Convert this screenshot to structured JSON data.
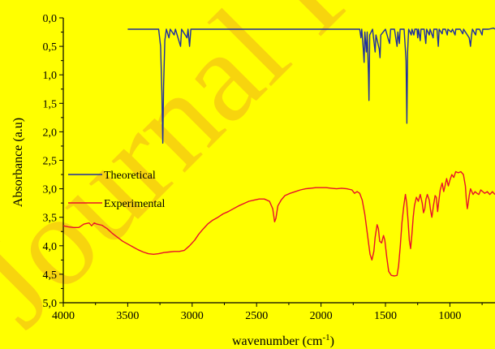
{
  "chart_data": {
    "type": "line",
    "watermark": "Journal Pre-proof",
    "xlabel": "wavenumber (cm",
    "xlabel_sup": "-1",
    "xlabel_suffix": ")",
    "ylabel": "Absorbance (a.u)",
    "xlim": [
      4000,
      650
    ],
    "ylim": [
      0.0,
      5.0
    ],
    "y_inverted": true,
    "x_ticks": [
      4000,
      3500,
      3000,
      2500,
      2000,
      1500,
      1000
    ],
    "x_tick_labels": [
      "4000",
      "3500",
      "3000",
      "2500",
      "2000",
      "1500",
      "1000"
    ],
    "y_ticks": [
      0.0,
      0.5,
      1.0,
      1.5,
      2.0,
      2.5,
      3.0,
      3.5,
      4.0,
      4.5,
      5.0
    ],
    "y_tick_labels": [
      "0,0",
      "0,5",
      "1,0",
      "1,5",
      "2,0",
      "2,5",
      "3,0",
      "3,5",
      "4,0",
      "4,5",
      "5,0"
    ],
    "grid": false,
    "legend_position": "left",
    "colors": {
      "background": "#ffff00",
      "theoretical": "#1f2f9e",
      "experimental": "#e8102a",
      "watermark": "#f2b21a"
    },
    "series": [
      {
        "name": "Theoretical",
        "color": "#1f2f9e",
        "points": [
          [
            3500,
            0.2
          ],
          [
            3260,
            0.2
          ],
          [
            3245,
            0.5
          ],
          [
            3235,
            1.3
          ],
          [
            3228,
            2.2
          ],
          [
            3222,
            1.2
          ],
          [
            3212,
            0.4
          ],
          [
            3200,
            0.2
          ],
          [
            3180,
            0.35
          ],
          [
            3170,
            0.2
          ],
          [
            3140,
            0.3
          ],
          [
            3130,
            0.2
          ],
          [
            3090,
            0.5
          ],
          [
            3082,
            0.2
          ],
          [
            3040,
            0.35
          ],
          [
            3032,
            0.2
          ],
          [
            3020,
            0.5
          ],
          [
            3010,
            0.2
          ],
          [
            1700,
            0.2
          ],
          [
            1690,
            0.35
          ],
          [
            1684,
            0.2
          ],
          [
            1672,
            0.55
          ],
          [
            1666,
            0.78
          ],
          [
            1660,
            0.25
          ],
          [
            1648,
            0.6
          ],
          [
            1642,
            0.25
          ],
          [
            1632,
            1.0
          ],
          [
            1628,
            1.45
          ],
          [
            1622,
            0.3
          ],
          [
            1600,
            0.2
          ],
          [
            1580,
            0.6
          ],
          [
            1574,
            0.3
          ],
          [
            1548,
            0.55
          ],
          [
            1542,
            0.7
          ],
          [
            1536,
            0.3
          ],
          [
            1500,
            0.2
          ],
          [
            1475,
            0.4
          ],
          [
            1468,
            0.45
          ],
          [
            1460,
            0.2
          ],
          [
            1430,
            0.2
          ],
          [
            1410,
            0.5
          ],
          [
            1404,
            0.25
          ],
          [
            1392,
            0.45
          ],
          [
            1386,
            0.2
          ],
          [
            1355,
            0.2
          ],
          [
            1340,
            0.75
          ],
          [
            1334,
            1.85
          ],
          [
            1328,
            0.6
          ],
          [
            1320,
            0.2
          ],
          [
            1300,
            0.3
          ],
          [
            1294,
            0.2
          ],
          [
            1280,
            0.3
          ],
          [
            1272,
            0.2
          ],
          [
            1255,
            0.2
          ],
          [
            1250,
            0.35
          ],
          [
            1244,
            0.2
          ],
          [
            1230,
            0.4
          ],
          [
            1224,
            0.2
          ],
          [
            1200,
            0.2
          ],
          [
            1187,
            0.45
          ],
          [
            1180,
            0.2
          ],
          [
            1160,
            0.3
          ],
          [
            1154,
            0.2
          ],
          [
            1130,
            0.35
          ],
          [
            1125,
            0.2
          ],
          [
            1100,
            0.2
          ],
          [
            1090,
            0.5
          ],
          [
            1083,
            0.2
          ],
          [
            1060,
            0.28
          ],
          [
            1055,
            0.2
          ],
          [
            1035,
            0.2
          ],
          [
            1020,
            0.3
          ],
          [
            1015,
            0.2
          ],
          [
            990,
            0.25
          ],
          [
            980,
            0.2
          ],
          [
            960,
            0.3
          ],
          [
            954,
            0.2
          ],
          [
            920,
            0.2
          ],
          [
            900,
            0.28
          ],
          [
            894,
            0.2
          ],
          [
            850,
            0.35
          ],
          [
            840,
            0.5
          ],
          [
            832,
            0.3
          ],
          [
            825,
            0.2
          ],
          [
            800,
            0.3
          ],
          [
            795,
            0.2
          ],
          [
            770,
            0.2
          ],
          [
            750,
            0.3
          ],
          [
            745,
            0.2
          ],
          [
            700,
            0.2
          ],
          [
            660,
            0.18
          ],
          [
            650,
            0.2
          ]
        ]
      },
      {
        "name": "Experimental",
        "color": "#e8102a",
        "points": [
          [
            4000,
            3.65
          ],
          [
            3960,
            3.67
          ],
          [
            3920,
            3.68
          ],
          [
            3880,
            3.68
          ],
          [
            3840,
            3.62
          ],
          [
            3800,
            3.6
          ],
          [
            3780,
            3.65
          ],
          [
            3760,
            3.6
          ],
          [
            3740,
            3.62
          ],
          [
            3700,
            3.64
          ],
          [
            3660,
            3.7
          ],
          [
            3620,
            3.78
          ],
          [
            3580,
            3.85
          ],
          [
            3540,
            3.92
          ],
          [
            3500,
            3.97
          ],
          [
            3460,
            4.02
          ],
          [
            3420,
            4.07
          ],
          [
            3380,
            4.11
          ],
          [
            3340,
            4.14
          ],
          [
            3300,
            4.15
          ],
          [
            3260,
            4.14
          ],
          [
            3220,
            4.12
          ],
          [
            3180,
            4.11
          ],
          [
            3140,
            4.1
          ],
          [
            3100,
            4.1
          ],
          [
            3060,
            4.08
          ],
          [
            3020,
            4.0
          ],
          [
            2980,
            3.9
          ],
          [
            2950,
            3.8
          ],
          [
            2920,
            3.72
          ],
          [
            2880,
            3.62
          ],
          [
            2840,
            3.55
          ],
          [
            2800,
            3.5
          ],
          [
            2760,
            3.44
          ],
          [
            2720,
            3.4
          ],
          [
            2680,
            3.35
          ],
          [
            2640,
            3.3
          ],
          [
            2600,
            3.26
          ],
          [
            2560,
            3.22
          ],
          [
            2520,
            3.2
          ],
          [
            2480,
            3.18
          ],
          [
            2440,
            3.18
          ],
          [
            2400,
            3.22
          ],
          [
            2375,
            3.35
          ],
          [
            2360,
            3.58
          ],
          [
            2350,
            3.52
          ],
          [
            2335,
            3.3
          ],
          [
            2310,
            3.2
          ],
          [
            2280,
            3.12
          ],
          [
            2240,
            3.08
          ],
          [
            2200,
            3.05
          ],
          [
            2160,
            3.02
          ],
          [
            2120,
            3.0
          ],
          [
            2080,
            2.99
          ],
          [
            2040,
            2.98
          ],
          [
            2000,
            2.98
          ],
          [
            1960,
            2.98
          ],
          [
            1920,
            2.99
          ],
          [
            1880,
            3.0
          ],
          [
            1840,
            2.99
          ],
          [
            1800,
            3.0
          ],
          [
            1760,
            3.02
          ],
          [
            1740,
            3.08
          ],
          [
            1720,
            3.05
          ],
          [
            1700,
            3.08
          ],
          [
            1680,
            3.2
          ],
          [
            1660,
            3.45
          ],
          [
            1640,
            3.8
          ],
          [
            1620,
            4.15
          ],
          [
            1605,
            4.25
          ],
          [
            1590,
            4.1
          ],
          [
            1580,
            3.85
          ],
          [
            1565,
            3.63
          ],
          [
            1555,
            3.7
          ],
          [
            1545,
            3.92
          ],
          [
            1530,
            3.95
          ],
          [
            1515,
            3.82
          ],
          [
            1505,
            3.9
          ],
          [
            1490,
            4.2
          ],
          [
            1475,
            4.45
          ],
          [
            1455,
            4.52
          ],
          [
            1430,
            4.53
          ],
          [
            1410,
            4.52
          ],
          [
            1398,
            4.35
          ],
          [
            1385,
            4.0
          ],
          [
            1372,
            3.6
          ],
          [
            1358,
            3.3
          ],
          [
            1345,
            3.1
          ],
          [
            1335,
            3.25
          ],
          [
            1325,
            3.55
          ],
          [
            1315,
            3.9
          ],
          [
            1305,
            4.05
          ],
          [
            1295,
            3.8
          ],
          [
            1285,
            3.5
          ],
          [
            1275,
            3.3
          ],
          [
            1260,
            3.15
          ],
          [
            1245,
            3.22
          ],
          [
            1230,
            3.1
          ],
          [
            1215,
            3.25
          ],
          [
            1205,
            3.42
          ],
          [
            1195,
            3.35
          ],
          [
            1185,
            3.18
          ],
          [
            1175,
            3.1
          ],
          [
            1160,
            3.2
          ],
          [
            1150,
            3.38
          ],
          [
            1140,
            3.5
          ],
          [
            1128,
            3.3
          ],
          [
            1115,
            3.12
          ],
          [
            1105,
            3.15
          ],
          [
            1095,
            3.4
          ],
          [
            1085,
            3.2
          ],
          [
            1075,
            3.02
          ],
          [
            1060,
            2.9
          ],
          [
            1048,
            3.05
          ],
          [
            1038,
            2.95
          ],
          [
            1025,
            2.82
          ],
          [
            1012,
            2.95
          ],
          [
            1000,
            2.85
          ],
          [
            985,
            2.75
          ],
          [
            970,
            2.8
          ],
          [
            955,
            2.7
          ],
          [
            935,
            2.72
          ],
          [
            915,
            2.7
          ],
          [
            895,
            2.75
          ],
          [
            880,
            2.95
          ],
          [
            872,
            3.2
          ],
          [
            865,
            3.35
          ],
          [
            858,
            3.25
          ],
          [
            850,
            3.12
          ],
          [
            840,
            3.0
          ],
          [
            830,
            3.05
          ],
          [
            820,
            3.1
          ],
          [
            805,
            3.05
          ],
          [
            790,
            3.08
          ],
          [
            775,
            3.1
          ],
          [
            760,
            3.02
          ],
          [
            745,
            3.05
          ],
          [
            730,
            3.08
          ],
          [
            710,
            3.05
          ],
          [
            690,
            3.1
          ],
          [
            670,
            3.05
          ],
          [
            650,
            3.1
          ]
        ]
      }
    ]
  }
}
